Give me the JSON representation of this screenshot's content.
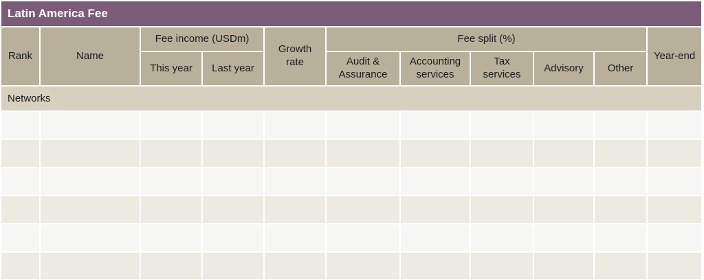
{
  "title": "Latin America Fee",
  "colors": {
    "title_bg": "#7b5c78",
    "header_bg": "#b9b09b",
    "section_bg": "#d6d1bf",
    "row_light": "#f6f6f5",
    "row_beige": "#edeae1"
  },
  "header": {
    "rank": "Rank",
    "name": "Name",
    "fee_income_group": "Fee income (USDm)",
    "this_year": "This year",
    "last_year": "Last year",
    "growth_rate": "Growth rate",
    "fee_split_group": "Fee split (%)",
    "audit_assurance": "Audit & Assurance",
    "accounting_services": "Accounting services",
    "tax_services": "Tax services",
    "advisory": "Advisory",
    "other": "Other",
    "year_end": "Year-end"
  },
  "section": {
    "label": "Networks"
  },
  "body": {
    "empty_row_count": 6,
    "columns_per_row": 11,
    "cell_value": ""
  }
}
